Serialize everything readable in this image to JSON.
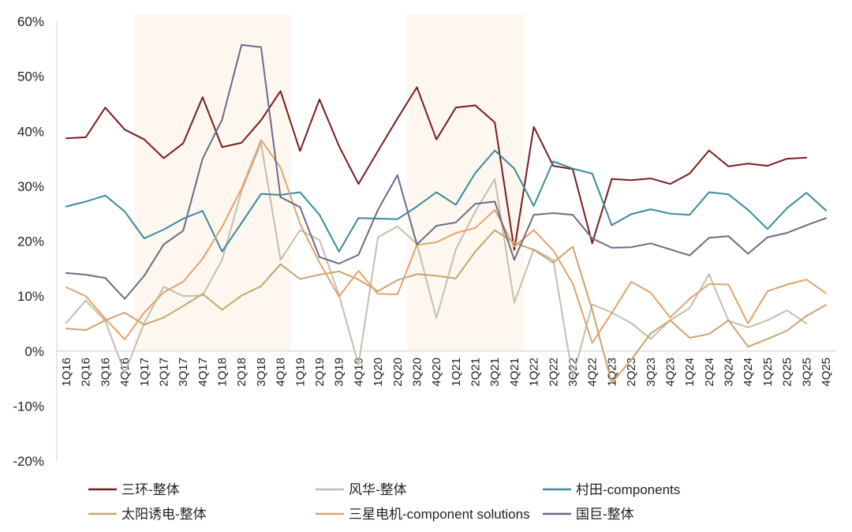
{
  "chart_data": {
    "type": "line",
    "title": "",
    "xlabel": "",
    "ylabel": "",
    "ylim": [
      -20,
      60
    ],
    "yticks": [
      -20,
      -10,
      0,
      10,
      20,
      30,
      40,
      50,
      60
    ],
    "ytick_labels": [
      "-20%",
      "-10%",
      "0%",
      "10%",
      "20%",
      "30%",
      "40%",
      "50%",
      "60%"
    ],
    "grid": false,
    "shaded_ranges": [
      [
        "1Q17",
        "4Q18"
      ],
      [
        "3Q20",
        "4Q21"
      ]
    ],
    "shade_color": "#fdf7ef",
    "categories": [
      "1Q16",
      "2Q16",
      "3Q16",
      "4Q16",
      "1Q17",
      "2Q17",
      "3Q17",
      "4Q17",
      "1Q18",
      "2Q18",
      "3Q18",
      "4Q18",
      "1Q19",
      "2Q19",
      "3Q19",
      "4Q19",
      "1Q20",
      "2Q20",
      "3Q20",
      "4Q20",
      "1Q21",
      "2Q21",
      "3Q21",
      "4Q21",
      "1Q22",
      "2Q22",
      "3Q22",
      "4Q22",
      "1Q23",
      "2Q23",
      "3Q23",
      "4Q23",
      "1Q24",
      "2Q24",
      "3Q24",
      "4Q24",
      "1Q25",
      "2Q25",
      "3Q25",
      "4Q25"
    ],
    "series": [
      {
        "name": "三环-整体",
        "color": "#7b1c1c",
        "values": [
          38.7,
          38.9,
          44.3,
          40.3,
          38.5,
          35.1,
          37.8,
          46.2,
          37.1,
          37.9,
          42.0,
          47.3,
          36.4,
          45.8,
          37.3,
          30.4,
          36.4,
          42.3,
          48.0,
          38.5,
          44.3,
          44.7,
          41.6,
          18.4,
          40.8,
          33.7,
          33.1,
          19.6,
          31.3,
          31.1,
          31.4,
          30.4,
          32.3,
          36.5,
          33.6,
          34.1,
          33.7,
          35.0,
          35.2,
          null
        ]
      },
      {
        "name": "风华-整体",
        "color": "#c0c0b0",
        "values": [
          5.1,
          9.2,
          5.5,
          -4.0,
          5.1,
          11.7,
          10.0,
          10.1,
          16.6,
          29.1,
          37.8,
          16.6,
          22.0,
          20.2,
          10.2,
          -2.5,
          20.7,
          22.7,
          19.5,
          6.0,
          18.5,
          25.4,
          31.3,
          8.8,
          18.5,
          16.6,
          -4.8,
          8.5,
          7.0,
          5.1,
          2.2,
          5.6,
          7.8,
          14.0,
          5.5,
          4.3,
          5.6,
          7.4,
          5.0,
          null
        ]
      },
      {
        "name": "村田-components",
        "color": "#3a8a9e",
        "values": [
          26.3,
          27.2,
          28.3,
          25.4,
          20.5,
          22.1,
          24.1,
          25.5,
          18.1,
          23.3,
          28.6,
          28.4,
          28.9,
          24.8,
          18.1,
          24.2,
          24.1,
          24.0,
          26.3,
          28.9,
          26.6,
          32.4,
          36.5,
          33.2,
          26.4,
          34.5,
          33.2,
          32.3,
          22.9,
          24.9,
          25.8,
          25.0,
          24.8,
          28.9,
          28.5,
          25.7,
          22.2,
          26.0,
          28.8,
          25.6
        ]
      },
      {
        "name": "太阳诱电-整体",
        "color": "#c9a46e",
        "values": [
          4.1,
          3.8,
          5.6,
          7.0,
          4.8,
          6.1,
          8.2,
          10.4,
          7.5,
          10.1,
          11.8,
          15.8,
          13.1,
          13.9,
          14.5,
          13.0,
          10.9,
          12.9,
          14.0,
          13.7,
          13.2,
          18.1,
          22.0,
          19.7,
          18.4,
          16.1,
          19.0,
          7.5,
          -5.8,
          -1.6,
          3.2,
          5.6,
          2.4,
          3.1,
          5.6,
          0.8,
          2.2,
          3.7,
          6.4,
          8.4
        ]
      },
      {
        "name": "三星电机-component solutions",
        "color": "#e6a26a",
        "values": [
          11.6,
          10.0,
          5.9,
          2.1,
          7.0,
          10.7,
          12.6,
          16.8,
          22.6,
          29.6,
          38.4,
          33.4,
          23.2,
          16.1,
          9.9,
          14.6,
          10.4,
          10.3,
          19.3,
          19.8,
          21.5,
          22.4,
          25.7,
          19.0,
          22.0,
          18.3,
          12.3,
          1.5,
          6.9,
          12.6,
          10.6,
          6.1,
          9.5,
          12.2,
          12.1,
          5.0,
          10.9,
          12.1,
          13.0,
          10.5
        ]
      },
      {
        "name": "国巨-整体",
        "color": "#6b6b86",
        "values": [
          14.2,
          13.9,
          13.3,
          9.5,
          13.7,
          19.4,
          21.9,
          35.0,
          42.1,
          55.7,
          55.3,
          28.0,
          26.2,
          17.1,
          15.9,
          17.5,
          25.7,
          32.0,
          19.4,
          22.8,
          23.4,
          26.8,
          27.2,
          16.6,
          24.8,
          25.1,
          24.8,
          20.5,
          18.8,
          18.9,
          19.6,
          18.5,
          17.4,
          20.6,
          20.9,
          17.7,
          20.7,
          21.5,
          22.9,
          24.2
        ]
      }
    ],
    "legend": [
      {
        "label": "三环-整体",
        "color": "#7b1c1c"
      },
      {
        "label": "风华-整体",
        "color": "#c0c0b0"
      },
      {
        "label": "村田-components",
        "color": "#3a8a9e"
      },
      {
        "label": "太阳诱电-整体",
        "color": "#c9a46e"
      },
      {
        "label": "三星电机-component solutions",
        "color": "#e6a26a"
      },
      {
        "label": "国巨-整体",
        "color": "#6b6b86"
      }
    ],
    "legend_position": "bottom"
  }
}
